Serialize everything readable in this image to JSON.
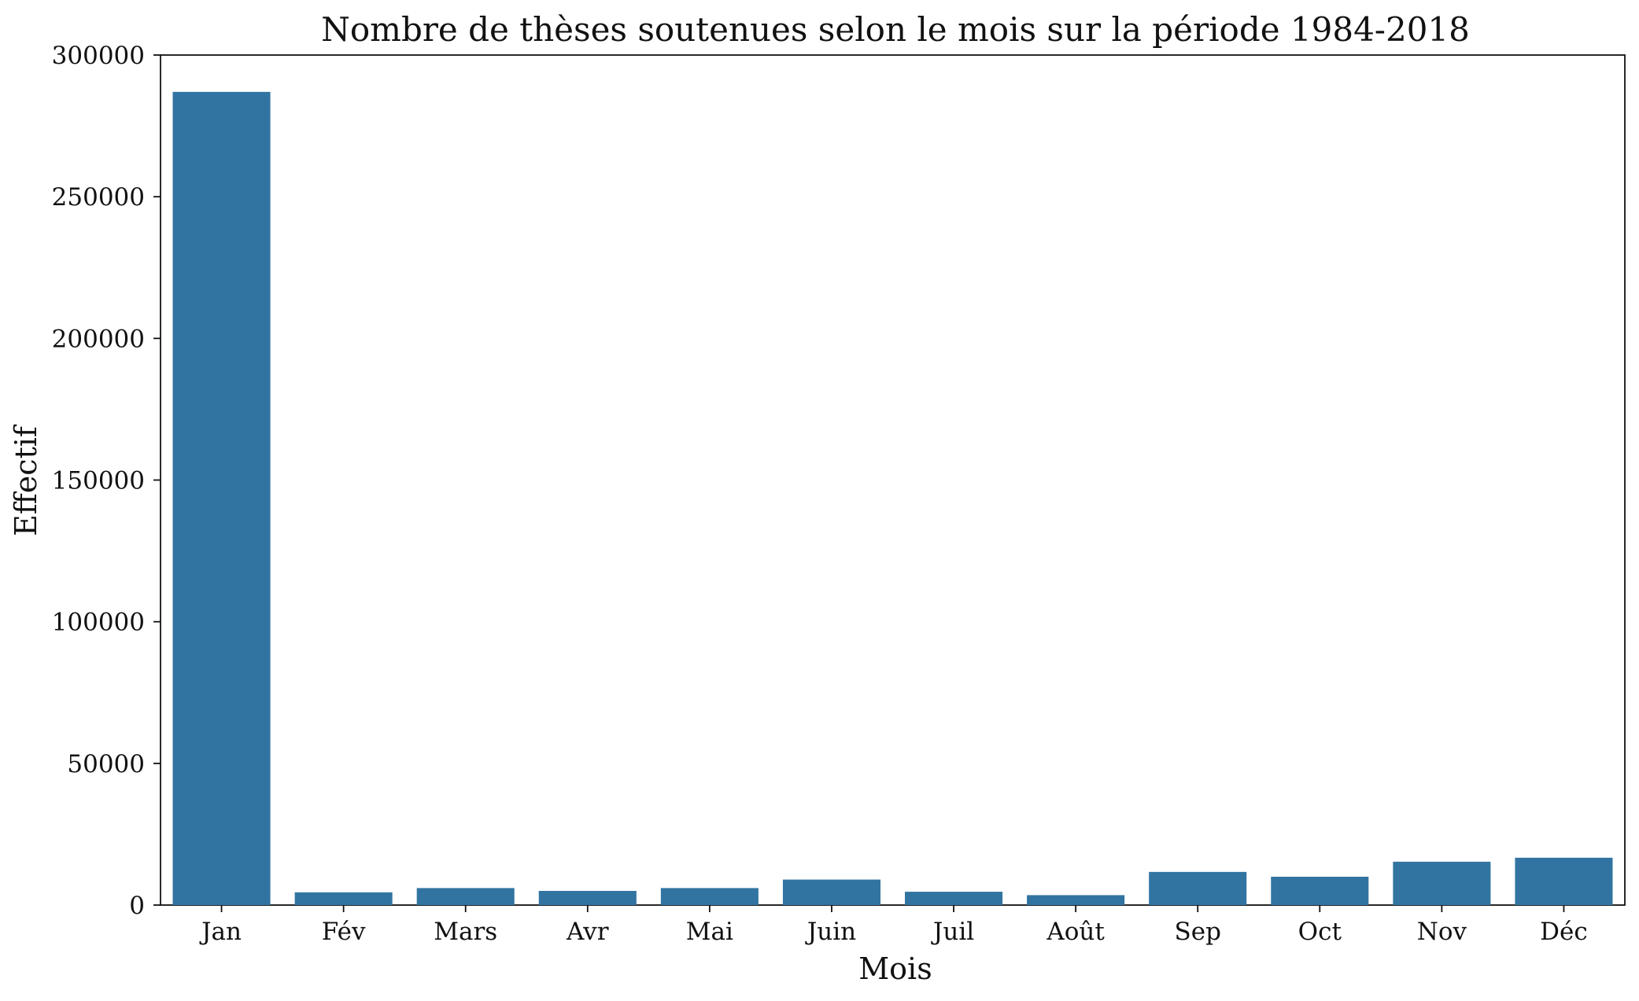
{
  "chart_data": {
    "type": "bar",
    "title": "Nombre de thèses soutenues selon le mois sur la période 1984-2018",
    "xlabel": "Mois",
    "ylabel": "Effectif",
    "categories": [
      "Jan",
      "Fév",
      "Mars",
      "Avr",
      "Mai",
      "Juin",
      "Juil",
      "Août",
      "Sep",
      "Oct",
      "Nov",
      "Déc"
    ],
    "values": [
      287000,
      4500,
      6000,
      5000,
      6000,
      9000,
      4700,
      3500,
      11700,
      10000,
      15300,
      16700
    ],
    "ylim": [
      0,
      300000
    ],
    "yticks": [
      "0",
      "50000",
      "100000",
      "150000",
      "200000",
      "250000",
      "300000"
    ],
    "grid": false,
    "legend": "none",
    "bar_color": "#3274a1"
  }
}
